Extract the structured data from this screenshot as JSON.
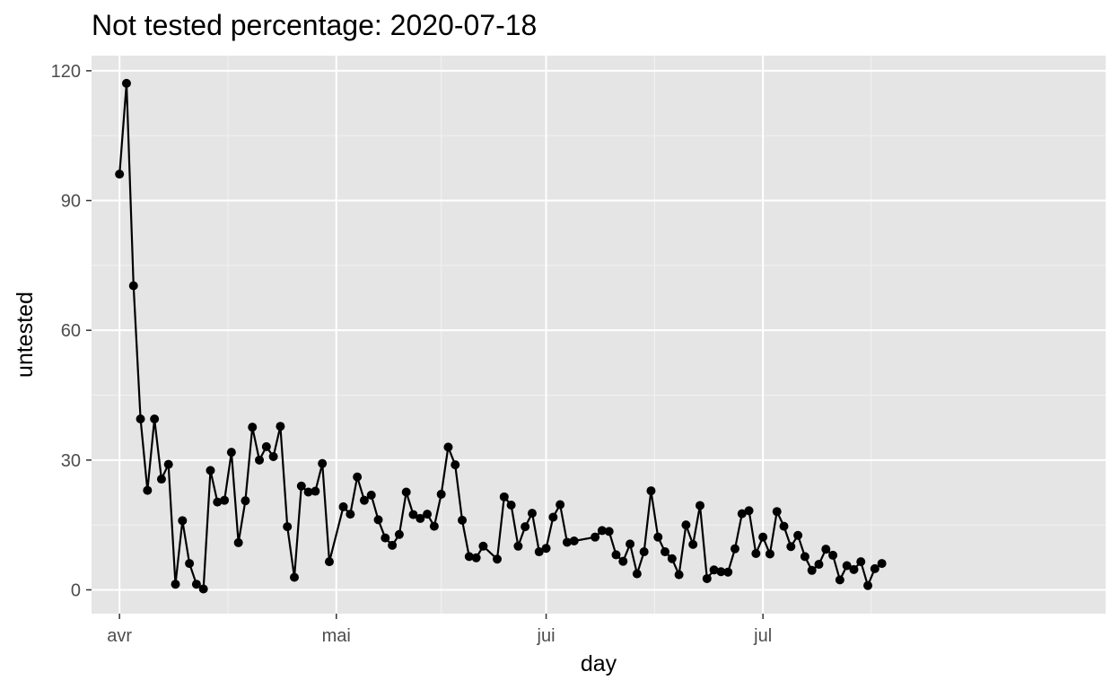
{
  "chart_data": {
    "type": "line",
    "title": "Not tested percentage: 2020-07-18",
    "xlabel": "day",
    "ylabel": "untested",
    "ylim": [
      -5.5,
      123.5
    ],
    "y_ticks": [
      0,
      30,
      60,
      90,
      120
    ],
    "x_ticks": [
      {
        "label": "avr",
        "date": "2020-03-01"
      },
      {
        "label": "mai",
        "date": "2020-04-01"
      },
      {
        "label": "jui",
        "date": "2020-05-01"
      },
      {
        "label": "jul",
        "date": "2020-06-01"
      }
    ],
    "xlim": [
      "2020-02-26",
      "2020-07-20"
    ],
    "grid": true,
    "line_color": "#000000",
    "panel_color": "#e5e5e5",
    "series": [
      {
        "points": [
          [
            "2020-03-01",
            96.1
          ],
          [
            "2020-03-02",
            117.1
          ],
          [
            "2020-03-03",
            70.3
          ],
          [
            "2020-03-04",
            39.5
          ],
          [
            "2020-03-05",
            23.0
          ],
          [
            "2020-03-06",
            39.5
          ],
          [
            "2020-03-07",
            25.6
          ],
          [
            "2020-03-08",
            29.0
          ],
          [
            "2020-03-09",
            1.3
          ],
          [
            "2020-03-10",
            16.0
          ],
          [
            "2020-03-11",
            6.1
          ],
          [
            "2020-03-12",
            1.3
          ],
          [
            "2020-03-13",
            0.2
          ],
          [
            "2020-03-14",
            27.6
          ],
          [
            "2020-03-15",
            20.3
          ],
          [
            "2020-03-16",
            20.7
          ],
          [
            "2020-03-17",
            31.8
          ],
          [
            "2020-03-18",
            10.9
          ],
          [
            "2020-03-19",
            20.6
          ],
          [
            "2020-03-20",
            37.6
          ],
          [
            "2020-03-21",
            30.0
          ],
          [
            "2020-03-22",
            33.1
          ],
          [
            "2020-03-23",
            30.8
          ],
          [
            "2020-03-24",
            37.8
          ],
          [
            "2020-03-25",
            14.6
          ],
          [
            "2020-03-26",
            2.9
          ],
          [
            "2020-03-27",
            24.0
          ],
          [
            "2020-03-28",
            22.6
          ],
          [
            "2020-03-29",
            22.8
          ],
          [
            "2020-03-30",
            29.2
          ],
          [
            "2020-03-31",
            6.5
          ],
          [
            "2020-04-02",
            19.2
          ],
          [
            "2020-04-03",
            17.5
          ],
          [
            "2020-04-04",
            26.1
          ],
          [
            "2020-04-05",
            20.7
          ],
          [
            "2020-04-06",
            21.9
          ],
          [
            "2020-04-07",
            16.2
          ],
          [
            "2020-04-08",
            12.0
          ],
          [
            "2020-04-09",
            10.3
          ],
          [
            "2020-04-10",
            12.8
          ],
          [
            "2020-04-11",
            22.6
          ],
          [
            "2020-04-12",
            17.4
          ],
          [
            "2020-04-13",
            16.5
          ],
          [
            "2020-04-14",
            17.5
          ],
          [
            "2020-04-15",
            14.7
          ],
          [
            "2020-04-16",
            22.1
          ],
          [
            "2020-04-17",
            33.0
          ],
          [
            "2020-04-18",
            28.9
          ],
          [
            "2020-04-19",
            16.1
          ],
          [
            "2020-04-20",
            7.7
          ],
          [
            "2020-04-21",
            7.4
          ],
          [
            "2020-04-22",
            10.1
          ],
          [
            "2020-04-24",
            7.1
          ],
          [
            "2020-04-25",
            21.5
          ],
          [
            "2020-04-26",
            19.6
          ],
          [
            "2020-04-27",
            10.1
          ],
          [
            "2020-04-28",
            14.6
          ],
          [
            "2020-04-29",
            17.7
          ],
          [
            "2020-04-30",
            8.8
          ],
          [
            "2020-05-01",
            9.6
          ],
          [
            "2020-05-02",
            16.8
          ],
          [
            "2020-05-03",
            19.7
          ],
          [
            "2020-05-04",
            11.0
          ],
          [
            "2020-05-05",
            11.3
          ],
          [
            "2020-05-08",
            12.2
          ],
          [
            "2020-05-09",
            13.7
          ],
          [
            "2020-05-10",
            13.5
          ],
          [
            "2020-05-11",
            8.1
          ],
          [
            "2020-05-12",
            6.6
          ],
          [
            "2020-05-13",
            10.6
          ],
          [
            "2020-05-14",
            3.7
          ],
          [
            "2020-05-15",
            8.8
          ],
          [
            "2020-05-16",
            22.9
          ],
          [
            "2020-05-17",
            12.2
          ],
          [
            "2020-05-18",
            8.8
          ],
          [
            "2020-05-19",
            7.2
          ],
          [
            "2020-05-20",
            3.5
          ],
          [
            "2020-05-21",
            15.0
          ],
          [
            "2020-05-22",
            10.5
          ],
          [
            "2020-05-23",
            19.5
          ],
          [
            "2020-05-24",
            2.6
          ],
          [
            "2020-05-25",
            4.6
          ],
          [
            "2020-05-26",
            4.2
          ],
          [
            "2020-05-27",
            4.1
          ],
          [
            "2020-05-28",
            9.5
          ],
          [
            "2020-05-29",
            17.6
          ],
          [
            "2020-05-30",
            18.3
          ],
          [
            "2020-05-31",
            8.4
          ],
          [
            "2020-06-01",
            12.2
          ],
          [
            "2020-06-02",
            8.3
          ],
          [
            "2020-06-03",
            18.1
          ],
          [
            "2020-06-04",
            14.7
          ],
          [
            "2020-06-05",
            10.0
          ],
          [
            "2020-06-06",
            12.6
          ],
          [
            "2020-06-07",
            7.7
          ],
          [
            "2020-06-08",
            4.5
          ],
          [
            "2020-06-09",
            5.9
          ],
          [
            "2020-06-10",
            9.4
          ],
          [
            "2020-06-11",
            8.0
          ],
          [
            "2020-06-12",
            2.3
          ],
          [
            "2020-06-13",
            5.6
          ],
          [
            "2020-06-14",
            4.7
          ],
          [
            "2020-06-15",
            6.5
          ],
          [
            "2020-06-16",
            1.0
          ],
          [
            "2020-06-17",
            4.9
          ],
          [
            "2020-06-18",
            6.1
          ]
        ]
      }
    ]
  }
}
